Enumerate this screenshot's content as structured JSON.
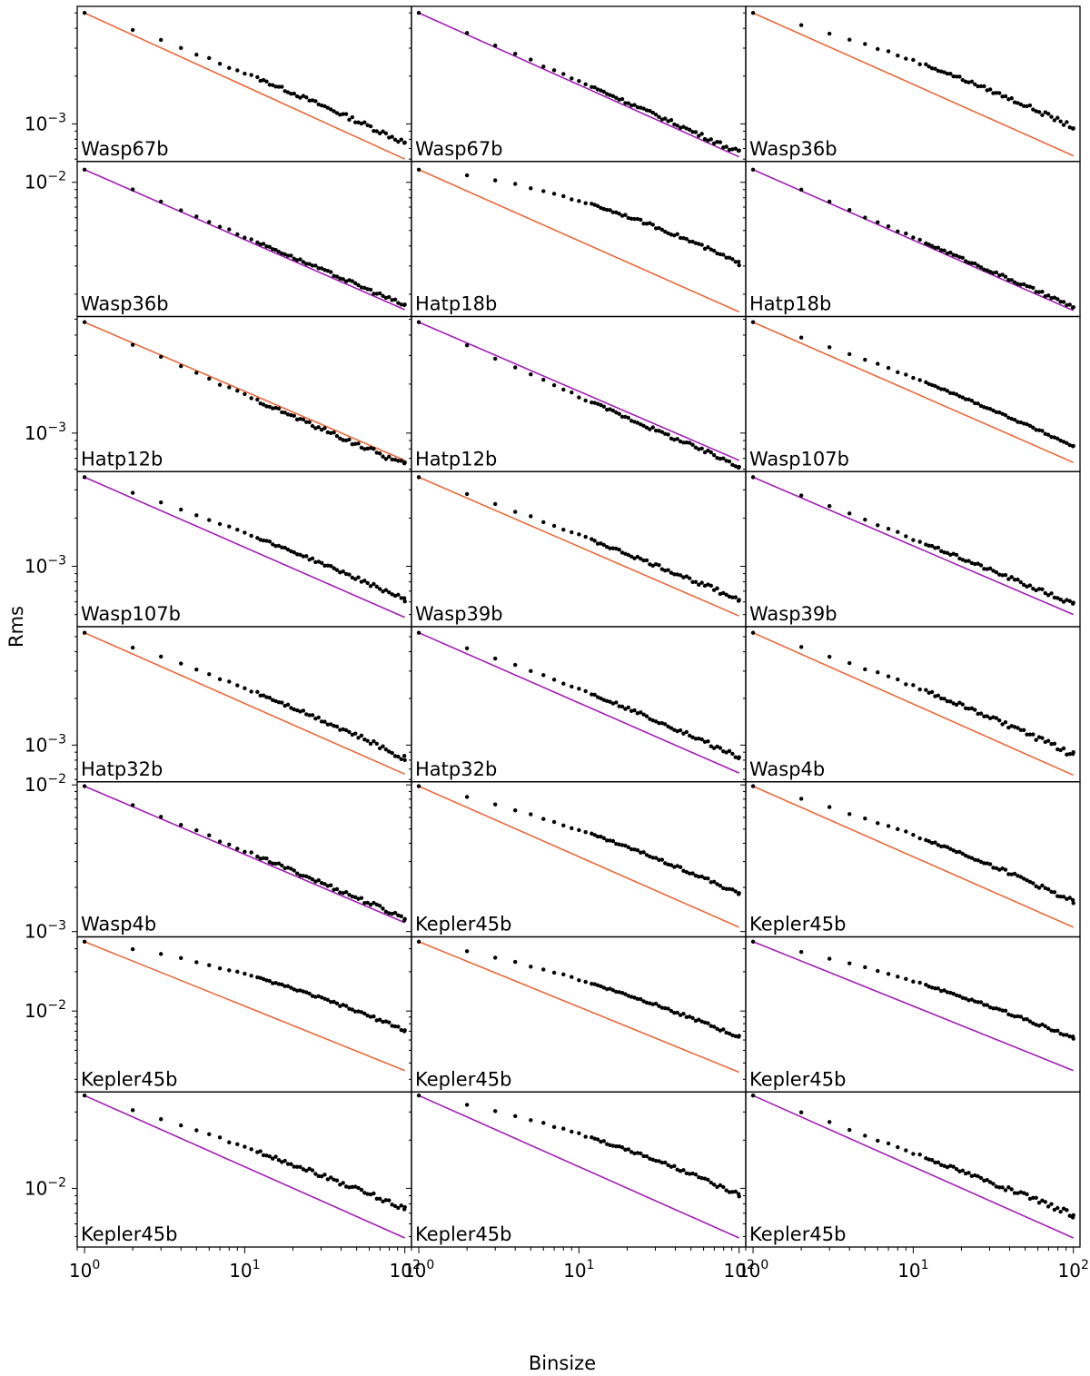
{
  "figure": {
    "xlabel": "Binsize",
    "ylabel": "Rms",
    "xlim": [
      0.9,
      110
    ],
    "x_ticks": [
      {
        "value": 1,
        "mant": "10",
        "exp": "0"
      },
      {
        "value": 10,
        "mant": "10",
        "exp": "1"
      },
      {
        "value": 100,
        "mant": "10",
        "exp": "2"
      }
    ]
  },
  "colors": {
    "orange": "#e8693a",
    "purple": "#a11fb4",
    "points": "#000000",
    "frame": "#000000"
  },
  "chart_data": [
    {
      "type": "scatter",
      "label": "Wasp67b",
      "fit_color": "orange",
      "ylim": [
        0.00058,
        0.0055
      ],
      "ytick": {
        "value": 0.001,
        "mant": "10",
        "exp": "−3"
      },
      "first_rms": 0.005,
      "end_fit": 0.0006,
      "end_data": 0.00076,
      "bow": 0.06,
      "noise": 0.035
    },
    {
      "type": "scatter",
      "label": "Wasp67b",
      "fit_color": "purple",
      "ylim": [
        0.00058,
        0.0055
      ],
      "ytick": null,
      "first_rms": 0.005,
      "end_fit": 0.00062,
      "end_data": 0.00066,
      "bow": 0.02,
      "noise": 0.03
    },
    {
      "type": "scatter",
      "label": "Wasp36b",
      "fit_color": "orange",
      "ylim": [
        0.00058,
        0.0055
      ],
      "ytick": null,
      "first_rms": 0.005,
      "end_fit": 0.00063,
      "end_data": 0.00095,
      "bow": 0.12,
      "noise": 0.03
    },
    {
      "type": "scatter",
      "label": "Wasp36b",
      "fit_color": "purple",
      "ylim": [
        0.00145,
        0.0135
      ],
      "ytick": {
        "value": 0.01,
        "mant": "10",
        "exp": "−2"
      },
      "first_rms": 0.012,
      "end_fit": 0.0016,
      "end_data": 0.0017,
      "bow": 0.01,
      "noise": 0.025
    },
    {
      "type": "scatter",
      "label": "Hatp18b",
      "fit_color": "orange",
      "ylim": [
        0.00145,
        0.0135
      ],
      "ytick": null,
      "first_rms": 0.012,
      "end_fit": 0.00155,
      "end_data": 0.0031,
      "bow": 0.2,
      "noise": 0.025
    },
    {
      "type": "scatter",
      "label": "Hatp18b",
      "fit_color": "purple",
      "ylim": [
        0.00145,
        0.0135
      ],
      "ytick": null,
      "first_rms": 0.012,
      "end_fit": 0.00158,
      "end_data": 0.00166,
      "bow": 0.01,
      "noise": 0.025
    },
    {
      "type": "scatter",
      "label": "Hatp12b",
      "fit_color": "orange",
      "ylim": [
        0.00058,
        0.0052
      ],
      "ytick": {
        "value": 0.001,
        "mant": "10",
        "exp": "−3"
      },
      "first_rms": 0.0048,
      "end_fit": 0.00068,
      "end_data": 0.00064,
      "bow": -0.02,
      "noise": 0.035
    },
    {
      "type": "scatter",
      "label": "Hatp12b",
      "fit_color": "purple",
      "ylim": [
        0.00058,
        0.0052
      ],
      "ytick": null,
      "first_rms": 0.0048,
      "end_fit": 0.00068,
      "end_data": 0.00063,
      "bow": -0.03,
      "noise": 0.03
    },
    {
      "type": "scatter",
      "label": "Wasp107b",
      "fit_color": "orange",
      "ylim": [
        0.00058,
        0.0052
      ],
      "ytick": null,
      "first_rms": 0.0048,
      "end_fit": 0.00066,
      "end_data": 0.00083,
      "bow": 0.08,
      "noise": 0.015
    },
    {
      "type": "scatter",
      "label": "Wasp107b",
      "fit_color": "purple",
      "ylim": [
        0.00042,
        0.0039
      ],
      "ytick": {
        "value": 0.001,
        "mant": "10",
        "exp": "−3"
      },
      "first_rms": 0.0036,
      "end_fit": 0.00048,
      "end_data": 0.00062,
      "bow": 0.07,
      "noise": 0.025
    },
    {
      "type": "scatter",
      "label": "Wasp39b",
      "fit_color": "orange",
      "ylim": [
        0.00042,
        0.0039
      ],
      "ytick": null,
      "first_rms": 0.0036,
      "end_fit": 0.00049,
      "end_data": 0.00062,
      "bow": 0.04,
      "noise": 0.03
    },
    {
      "type": "scatter",
      "label": "Wasp39b",
      "fit_color": "purple",
      "ylim": [
        0.00042,
        0.0039
      ],
      "ytick": null,
      "first_rms": 0.0036,
      "end_fit": 0.0005,
      "end_data": 0.00058,
      "bow": 0.02,
      "noise": 0.03
    },
    {
      "type": "scatter",
      "label": "Hatp32b",
      "fit_color": "orange",
      "ylim": [
        0.00058,
        0.0058
      ],
      "ytick": {
        "value": 0.001,
        "mant": "10",
        "exp": "−3"
      },
      "first_rms": 0.0053,
      "end_fit": 0.00065,
      "end_data": 0.00082,
      "bow": 0.1,
      "noise": 0.035
    },
    {
      "type": "scatter",
      "label": "Hatp32b",
      "fit_color": "purple",
      "ylim": [
        0.00058,
        0.0058
      ],
      "ytick": null,
      "first_rms": 0.0053,
      "end_fit": 0.00066,
      "end_data": 0.00083,
      "bow": 0.08,
      "noise": 0.03
    },
    {
      "type": "scatter",
      "label": "Wasp4b",
      "fit_color": "orange",
      "ylim": [
        0.00058,
        0.0058
      ],
      "ytick": null,
      "first_rms": 0.0053,
      "end_fit": 0.00064,
      "end_data": 0.00086,
      "bow": 0.1,
      "noise": 0.04
    },
    {
      "type": "scatter",
      "label": "Wasp4b",
      "fit_color": "purple",
      "ylim": [
        0.00092,
        0.0105
      ],
      "ytick2": true,
      "first_rms": 0.0098,
      "end_fit": 0.00115,
      "end_data": 0.00123,
      "bow": 0.02,
      "noise": 0.035
    },
    {
      "type": "scatter",
      "label": "Kepler45b",
      "fit_color": "orange",
      "ylim": [
        0.00092,
        0.0105
      ],
      "ytick": null,
      "first_rms": 0.0098,
      "end_fit": 0.00107,
      "end_data": 0.0018,
      "bow": 0.14,
      "noise": 0.025
    },
    {
      "type": "scatter",
      "label": "Kepler45b",
      "fit_color": "orange",
      "ylim": [
        0.00092,
        0.0105
      ],
      "ytick": null,
      "first_rms": 0.0098,
      "end_fit": 0.00107,
      "end_data": 0.0016,
      "bow": 0.12,
      "noise": 0.03
    },
    {
      "type": "scatter",
      "label": "Kepler45b",
      "fit_color": "orange",
      "ylim": [
        0.0024,
        0.037
      ],
      "ytick": {
        "value": 0.01,
        "mant": "10",
        "exp": "−2"
      },
      "first_rms": 0.034,
      "end_fit": 0.0035,
      "end_data": 0.0071,
      "bow": 0.18,
      "noise": 0.025
    },
    {
      "type": "scatter",
      "label": "Kepler45b",
      "fit_color": "orange",
      "ylim": [
        0.0024,
        0.037
      ],
      "ytick": null,
      "first_rms": 0.034,
      "end_fit": 0.0034,
      "end_data": 0.0063,
      "bow": 0.15,
      "noise": 0.025
    },
    {
      "type": "scatter",
      "label": "Kepler45b",
      "fit_color": "purple",
      "ylim": [
        0.0024,
        0.037
      ],
      "ytick": null,
      "first_rms": 0.034,
      "end_fit": 0.0035,
      "end_data": 0.0062,
      "bow": 0.13,
      "noise": 0.025
    },
    {
      "type": "scatter",
      "label": "Kepler45b",
      "fit_color": "purple",
      "ylim": [
        0.0043,
        0.04
      ],
      "ytick": {
        "value": 0.01,
        "mant": "10",
        "exp": "−2"
      },
      "first_rms": 0.038,
      "end_fit": 0.0049,
      "end_data": 0.0075,
      "bow": 0.06,
      "noise": 0.035
    },
    {
      "type": "scatter",
      "label": "Kepler45b",
      "fit_color": "purple",
      "ylim": [
        0.0043,
        0.04
      ],
      "ytick": null,
      "first_rms": 0.038,
      "end_fit": 0.0049,
      "end_data": 0.0091,
      "bow": 0.14,
      "noise": 0.025
    },
    {
      "type": "scatter",
      "label": "Kepler45b",
      "fit_color": "purple",
      "ylim": [
        0.0043,
        0.04
      ],
      "ytick": null,
      "first_rms": 0.038,
      "end_fit": 0.0049,
      "end_data": 0.0068,
      "bow": 0.03,
      "noise": 0.035
    }
  ]
}
